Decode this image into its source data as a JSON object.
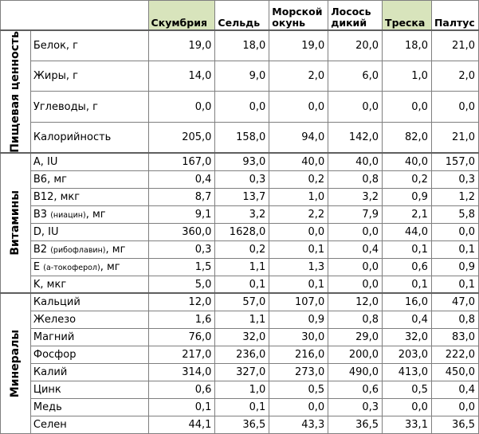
{
  "table": {
    "fish": [
      {
        "name": "Скумбрия",
        "highlight": true
      },
      {
        "name": "Сельдь",
        "highlight": false
      },
      {
        "name": "Морской окунь",
        "highlight": false
      },
      {
        "name": "Лосось дикий",
        "highlight": false
      },
      {
        "name": "Треска",
        "highlight": true
      },
      {
        "name": "Палтус",
        "highlight": false
      }
    ],
    "groups": [
      {
        "label": "Пищевая ценность",
        "rows": [
          {
            "param": "Белок, г",
            "sub": "",
            "unit": "",
            "values": [
              "19,0",
              "18,0",
              "19,0",
              "20,0",
              "18,0",
              "21,0"
            ]
          },
          {
            "param": "Жиры, г",
            "sub": "",
            "unit": "",
            "values": [
              "14,0",
              "9,0",
              "2,0",
              "6,0",
              "1,0",
              "2,0"
            ]
          },
          {
            "param": "Углеводы, г",
            "sub": "",
            "unit": "",
            "values": [
              "0,0",
              "0,0",
              "0,0",
              "0,0",
              "0,0",
              "0,0"
            ]
          },
          {
            "param": " Калорийность",
            "sub": "",
            "unit": "",
            "values": [
              "205,0",
              "158,0",
              "94,0",
              "142,0",
              "82,0",
              "21,0"
            ]
          }
        ]
      },
      {
        "label": "Витамины",
        "rows": [
          {
            "param": "A, IU",
            "sub": "",
            "unit": "",
            "values": [
              "167,0",
              "93,0",
              "40,0",
              "40,0",
              "40,0",
              "157,0"
            ]
          },
          {
            "param": "B6, мг",
            "sub": "",
            "unit": "",
            "values": [
              "0,4",
              "0,3",
              "0,2",
              "0,8",
              "0,2",
              "0,3"
            ]
          },
          {
            "param": "B12, мкг",
            "sub": "",
            "unit": "",
            "values": [
              "8,7",
              "13,7",
              "1,0",
              "3,2",
              "0,9",
              "1,2"
            ]
          },
          {
            "param": "B3 ",
            "sub": "(ниацин)",
            "unit": ", мг",
            "values": [
              "9,1",
              "3,2",
              "2,2",
              "7,9",
              "2,1",
              "5,8"
            ]
          },
          {
            "param": "D, IU",
            "sub": "",
            "unit": "",
            "values": [
              "360,0",
              "1628,0",
              "0,0",
              "0,0",
              "44,0",
              "0,0"
            ]
          },
          {
            "param": "B2 ",
            "sub": "(рибофлавин)",
            "unit": ", мг",
            "values": [
              "0,3",
              "0,2",
              "0,1",
              "0,4",
              "0,1",
              "0,1"
            ]
          },
          {
            "param": "E ",
            "sub": "(a-токоферол)",
            "unit": ", мг",
            "values": [
              "1,5",
              "1,1",
              "1,3",
              "0,0",
              "0,6",
              "0,9"
            ]
          },
          {
            "param": "K, мкг",
            "sub": "",
            "unit": "",
            "values": [
              "5,0",
              "0,1",
              "0,1",
              "0,0",
              "0,1",
              "0,1"
            ]
          }
        ]
      },
      {
        "label": "Минералы",
        "rows": [
          {
            "param": "Кальций",
            "sub": "",
            "unit": "",
            "values": [
              "12,0",
              "57,0",
              "107,0",
              "12,0",
              "16,0",
              "47,0"
            ]
          },
          {
            "param": "Железо",
            "sub": "",
            "unit": "",
            "values": [
              "1,6",
              "1,1",
              "0,9",
              "0,8",
              "0,4",
              "0,8"
            ]
          },
          {
            "param": "Магний",
            "sub": "",
            "unit": "",
            "values": [
              "76,0",
              "32,0",
              "30,0",
              "29,0",
              "32,0",
              "83,0"
            ]
          },
          {
            "param": "Фосфор",
            "sub": "",
            "unit": "",
            "values": [
              "217,0",
              "236,0",
              "216,0",
              "200,0",
              "203,0",
              "222,0"
            ]
          },
          {
            "param": "Калий",
            "sub": "",
            "unit": "",
            "values": [
              "314,0",
              "327,0",
              "273,0",
              "490,0",
              "413,0",
              "450,0"
            ]
          },
          {
            "param": "Цинк",
            "sub": "",
            "unit": "",
            "values": [
              "0,6",
              "1,0",
              "0,5",
              "0,6",
              "0,5",
              "0,4"
            ]
          },
          {
            "param": "Медь",
            "sub": "",
            "unit": "",
            "values": [
              "0,1",
              "0,1",
              "0,0",
              "0,3",
              "0,0",
              "0,0"
            ]
          },
          {
            "param": "Селен",
            "sub": "",
            "unit": "",
            "values": [
              "44,1",
              "36,5",
              "43,3",
              "36,5",
              "33,1",
              "36,5"
            ]
          }
        ]
      }
    ],
    "colors": {
      "highlight": "#d8e4bc",
      "border": "#7f7f7f"
    }
  }
}
